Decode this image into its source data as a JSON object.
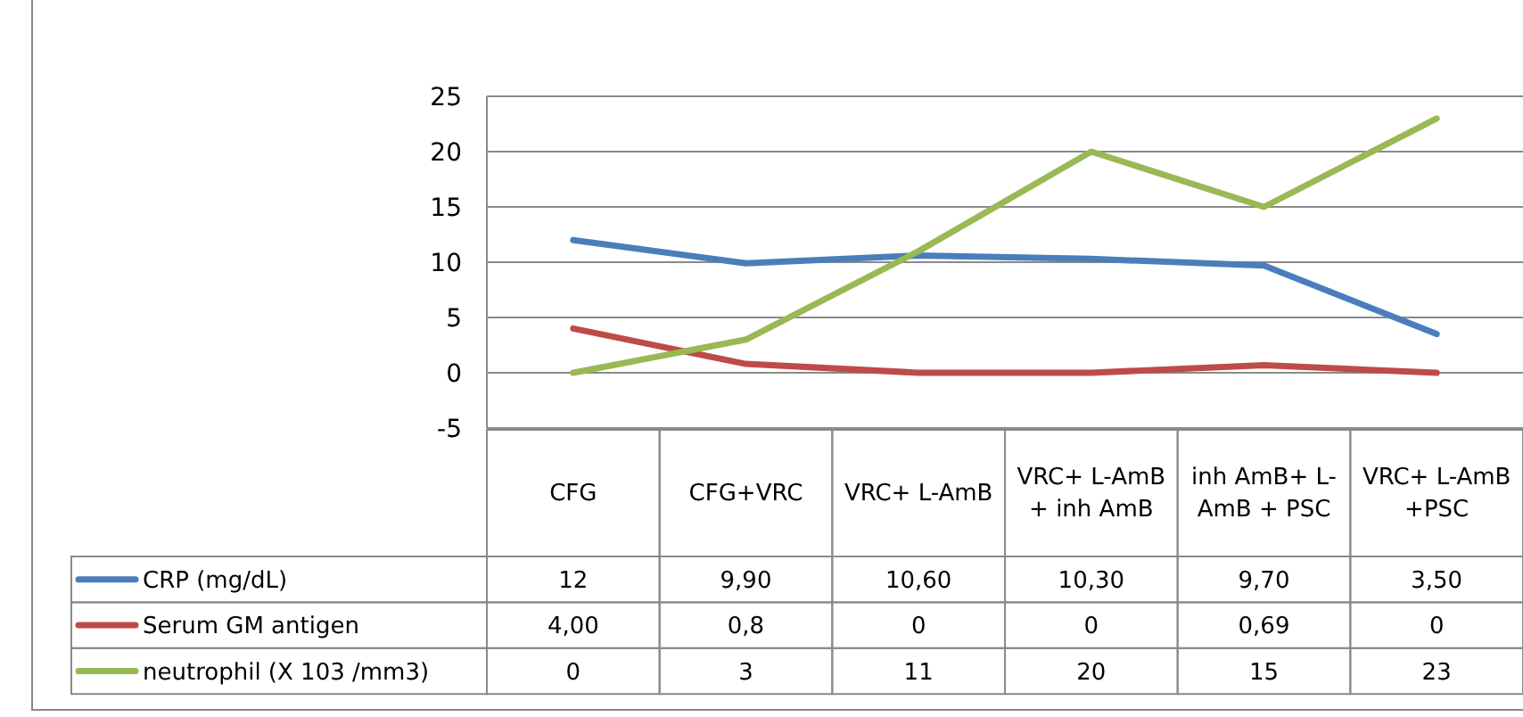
{
  "chart_data": {
    "type": "line",
    "categories": [
      "CFG",
      "CFG+VRC",
      "VRC+ L-AmB",
      "VRC+ L-AmB + inh AmB",
      "inh AmB+ L-AmB + PSC",
      "VRC+ L-AmB +PSC"
    ],
    "series": [
      {
        "name": "CRP (mg/dL)",
        "color": "#4a7ebb",
        "values": [
          12,
          9.9,
          10.6,
          10.3,
          9.7,
          3.5
        ],
        "value_labels": [
          "12",
          "9,90",
          "10,60",
          "10,30",
          "9,70",
          "3,50"
        ]
      },
      {
        "name": "Serum GM antigen",
        "color": "#be4b48",
        "values": [
          4,
          0.8,
          0,
          0,
          0.69,
          0
        ],
        "value_labels": [
          "4,00",
          "0,8",
          "0",
          "0",
          "0,69",
          "0"
        ]
      },
      {
        "name": "neutrophil (X 103 /mm3)",
        "color": "#98b954",
        "values": [
          0,
          3,
          11,
          20,
          15,
          23
        ],
        "value_labels": [
          "0",
          "3",
          "11",
          "20",
          "15",
          "23"
        ]
      }
    ],
    "ylim": [
      -5,
      25
    ],
    "yticks": [
      -5,
      0,
      5,
      10,
      15,
      20,
      25
    ],
    "grid": "y",
    "legend": "bottom",
    "marker": "none",
    "line_style": "solid"
  }
}
